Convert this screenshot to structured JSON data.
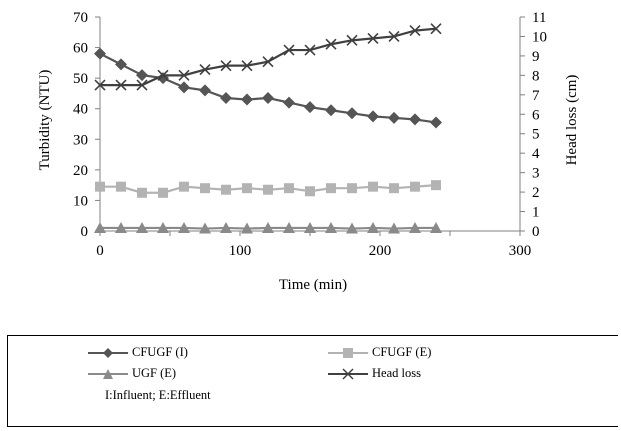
{
  "chart_data": {
    "type": "line",
    "xlabel": "Time (min)",
    "ylabel": "Turbidity (NTU)",
    "y2label": "Head loss (cm)",
    "xlim": [
      0,
      300
    ],
    "ylim": [
      0,
      70
    ],
    "y2lim": [
      0,
      11
    ],
    "xticks": [
      "0",
      "100",
      "200",
      "300"
    ],
    "yticks": [
      "0",
      "10",
      "20",
      "30",
      "40",
      "50",
      "60",
      "70"
    ],
    "y2ticks": [
      "0",
      "1",
      "2",
      "3",
      "4",
      "5",
      "6",
      "7",
      "8",
      "9",
      "10",
      "11"
    ],
    "grid": false,
    "legend_position": "bottom",
    "x": [
      0,
      15,
      30,
      45,
      60,
      75,
      90,
      105,
      120,
      135,
      150,
      165,
      180,
      195,
      210,
      225,
      240
    ],
    "series": [
      {
        "name": "CFUGF (I)",
        "axis": "left",
        "marker": "diamond",
        "color": "#555555",
        "values": [
          58,
          54.5,
          51,
          50,
          47,
          46,
          43.5,
          43,
          43.5,
          42,
          40.5,
          39.5,
          38.5,
          37.5,
          37,
          36.5,
          35.5
        ]
      },
      {
        "name": "CFUGF (E)",
        "axis": "left",
        "marker": "square",
        "color": "#b3b3b3",
        "values": [
          14.5,
          14.5,
          12.5,
          12.5,
          14.5,
          14,
          13.5,
          14,
          13.5,
          14,
          13,
          14,
          14,
          14.5,
          14,
          14.5,
          15
        ]
      },
      {
        "name": "UGF (E)",
        "axis": "left",
        "marker": "triangle",
        "color": "#8a8a8a",
        "values": [
          1,
          1,
          1,
          1,
          1,
          0.8,
          1,
          0.8,
          1,
          1,
          1,
          1,
          0.8,
          1,
          0.8,
          1,
          1
        ]
      },
      {
        "name": "Head loss",
        "axis": "right",
        "marker": "x",
        "color": "#404040",
        "values": [
          7.5,
          7.5,
          7.5,
          8,
          8,
          8.3,
          8.5,
          8.5,
          8.7,
          9.3,
          9.3,
          9.6,
          9.8,
          9.9,
          10,
          10.3,
          10.4
        ]
      }
    ],
    "note": "I:Influent; E:Effluent"
  }
}
